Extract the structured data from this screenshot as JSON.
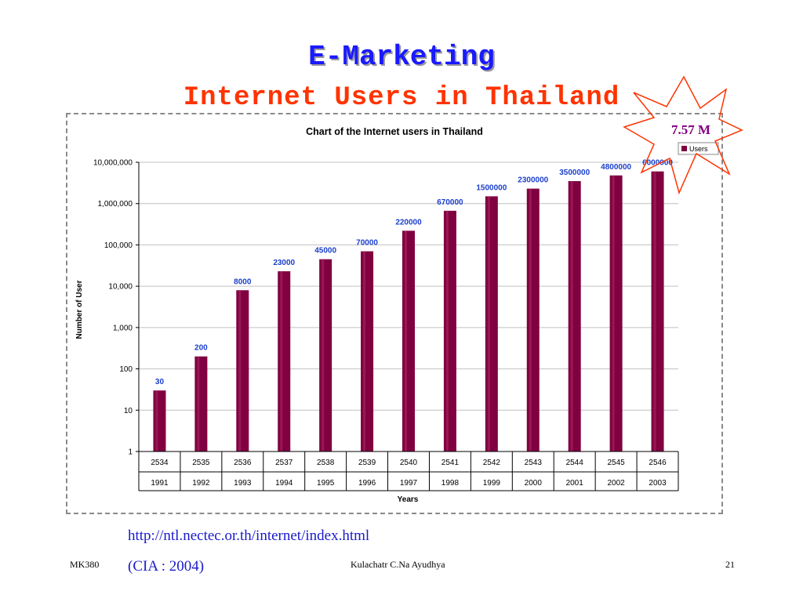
{
  "slide": {
    "title": "E-Marketing",
    "subtitle": "Internet Users in Thailand",
    "source_url": "http://ntl.nectec.or.th/internet/index.html",
    "citation": "(CIA : 2004)",
    "footer_left": "MK380",
    "footer_center": "Kulachatr C.Na Ayudhya",
    "footer_right": "21"
  },
  "callout": {
    "label": "7.57 M",
    "color": "#ff3300",
    "text_color": "#800080"
  },
  "colors": {
    "bar": "#800040",
    "bar_highlight": "#b0306a",
    "data_label": "#1a3fcc",
    "grid": "#c0c0c0"
  },
  "chart_data": {
    "type": "bar",
    "title": "Chart of the Internet users in Thailand",
    "xlabel": "Years",
    "ylabel": "Number of User",
    "y_scale": "log",
    "ylim": [
      1,
      10000000
    ],
    "y_ticks": [
      "1",
      "10",
      "100",
      "1,000",
      "10,000",
      "100,000",
      "1,000,000",
      "10,000,000"
    ],
    "categories_thai": [
      "2534",
      "2535",
      "2536",
      "2537",
      "2538",
      "2539",
      "2540",
      "2541",
      "2542",
      "2543",
      "2544",
      "2545",
      "2546"
    ],
    "categories": [
      "1991",
      "1992",
      "1993",
      "1994",
      "1995",
      "1996",
      "1997",
      "1998",
      "1999",
      "2000",
      "2001",
      "2002",
      "2003"
    ],
    "series": [
      {
        "name": "Users",
        "values": [
          30,
          200,
          8000,
          23000,
          45000,
          70000,
          220000,
          670000,
          1500000,
          2300000,
          3500000,
          4800000,
          6000000
        ]
      }
    ],
    "legend": "top-right",
    "grid": true
  }
}
